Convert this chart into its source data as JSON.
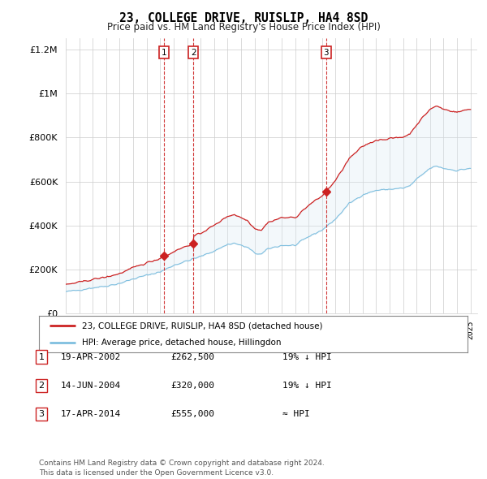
{
  "title": "23, COLLEGE DRIVE, RUISLIP, HA4 8SD",
  "subtitle": "Price paid vs. HM Land Registry's House Price Index (HPI)",
  "legend_line1": "23, COLLEGE DRIVE, RUISLIP, HA4 8SD (detached house)",
  "legend_line2": "HPI: Average price, detached house, Hillingdon",
  "transactions": [
    {
      "num": "1",
      "date": "19-APR-2002",
      "price": "£262,500",
      "hpi": "19% ↓ HPI"
    },
    {
      "num": "2",
      "date": "14-JUN-2004",
      "price": "£320,000",
      "hpi": "19% ↓ HPI"
    },
    {
      "num": "3",
      "date": "17-APR-2014",
      "price": "£555,000",
      "hpi": "≈ HPI"
    }
  ],
  "sale_dates": [
    2002.29,
    2004.45,
    2014.29
  ],
  "sale_prices": [
    262500,
    320000,
    555000
  ],
  "footer": "Contains HM Land Registry data © Crown copyright and database right 2024.\nThis data is licensed under the Open Government Licence v3.0.",
  "hpi_color": "#7fbfdf",
  "hpi_fill_color": "#daeaf5",
  "price_color": "#cc2222",
  "dashed_line_color": "#cc2222",
  "background_color": "#ffffff",
  "ylim": [
    0,
    1250000
  ],
  "xlim_start": 1995.0,
  "xlim_end": 2025.5,
  "yticks": [
    0,
    200000,
    400000,
    600000,
    800000,
    1000000,
    1200000
  ]
}
